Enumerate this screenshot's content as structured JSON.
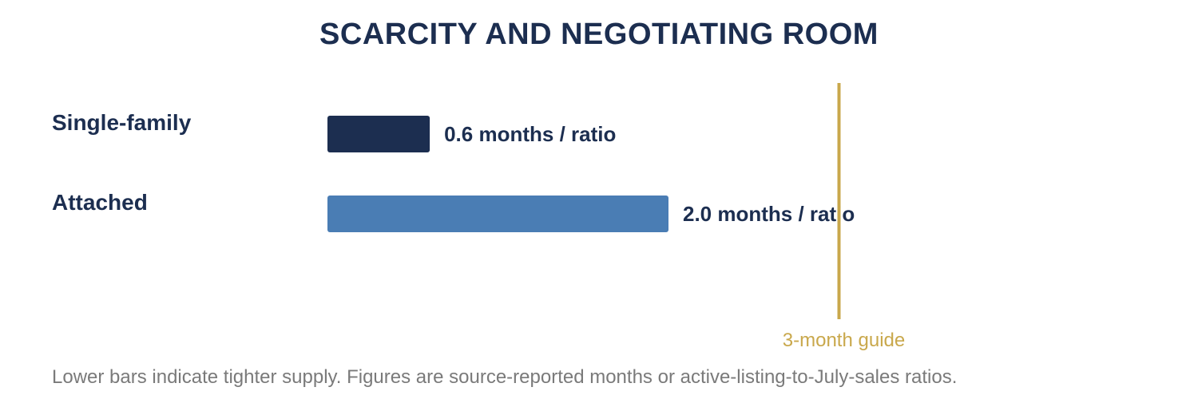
{
  "chart_data": {
    "type": "bar",
    "orientation": "horizontal",
    "title": "SCARCITY AND NEGOTIATING ROOM",
    "categories": [
      "Single-family",
      "Attached"
    ],
    "values": [
      0.6,
      2.0
    ],
    "value_labels": [
      "0.6 months / ratio",
      "2.0 months / ratio"
    ],
    "colors": [
      "#1c2e50",
      "#4a7db4"
    ],
    "xlim": [
      0,
      3.0
    ],
    "reference_line": {
      "value": 3.0,
      "label": "3-month guide",
      "color": "#c9a84c"
    },
    "grid": false,
    "legend": "none"
  },
  "footnote": "Lower bars indicate tighter supply. Figures are source-reported months or active-listing-to-July-sales ratios."
}
